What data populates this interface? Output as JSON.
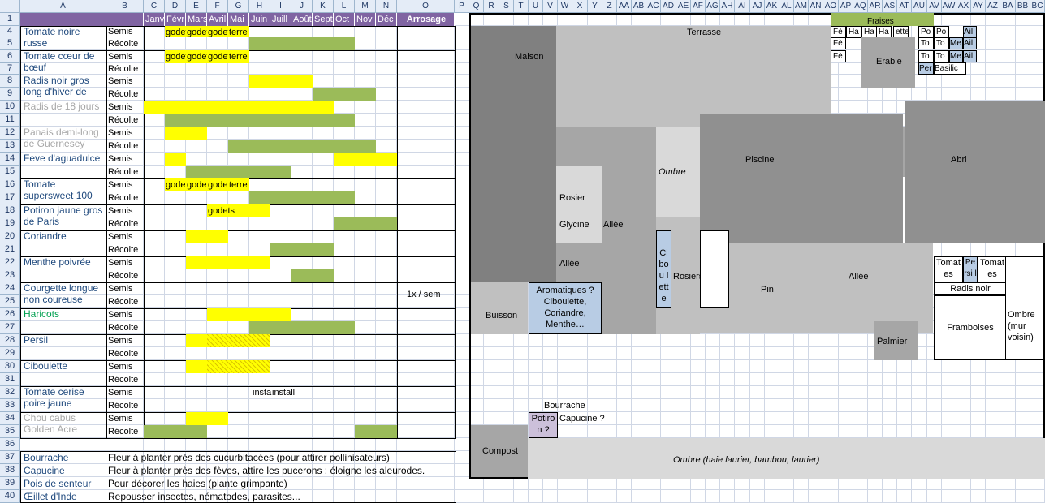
{
  "col_headers": [
    "A",
    "B",
    "C",
    "D",
    "E",
    "F",
    "G",
    "H",
    "I",
    "J",
    "K",
    "L",
    "M",
    "N",
    "O",
    "P",
    "Q",
    "R",
    "S",
    "T",
    "U",
    "V",
    "W",
    "X",
    "Y",
    "Z",
    "AA",
    "AB",
    "AC",
    "AD",
    "AE",
    "AF",
    "AG",
    "AH",
    "AI",
    "AJ",
    "AK",
    "AL",
    "AM",
    "AN",
    "AO",
    "AP",
    "AQ",
    "AR",
    "AS",
    "AT",
    "AU",
    "AV",
    "AW",
    "AX",
    "AY",
    "AZ",
    "BA",
    "BB",
    "BC"
  ],
  "row_headers": [
    "1",
    "4",
    "5",
    "6",
    "7",
    "8",
    "9",
    "10",
    "11",
    "12",
    "13",
    "14",
    "15",
    "16",
    "17",
    "18",
    "19",
    "20",
    "21",
    "22",
    "23",
    "24",
    "25",
    "26",
    "27",
    "28",
    "29",
    "30",
    "31",
    "32",
    "33",
    "34",
    "35",
    "36",
    "37",
    "38",
    "39",
    "40"
  ],
  "months": [
    "Janv",
    "Févr",
    "Mars",
    "Avril",
    "Mai",
    "Juin",
    "Juill",
    "Août",
    "Sept",
    "Oct",
    "Nov",
    "Déc"
  ],
  "arrosage_header": "Arrosage",
  "semis": "Semis",
  "recolte": "Récolte",
  "plants": [
    "Tomate noire russe",
    "Tomate cœur de bœuf",
    "Radis noir gros long d'hiver de",
    "Radis de 18 jours",
    "Panais demi-long de Guernesey",
    "Feve d'aguadulce",
    "Tomate supersweet 100",
    "Potiron jaune gros de Paris",
    "Coriandre",
    "Menthe poivrée",
    "Courgette longue non coureuse",
    "Haricots",
    "Persil",
    "Ciboulette",
    "Tomate cerise poire jaune",
    "Chou cabus Golden Acre"
  ],
  "cell_text": {
    "godet": "godet",
    "terre": "terre",
    "godets": "godets",
    "install": "install",
    "watering_courgette": "1x / sem"
  },
  "notes": [
    {
      "name": "Bourrache",
      "text": "Fleur à planter près des cucurbitacées (pour attirer pollinisateurs)"
    },
    {
      "name": "Capucine",
      "text": "Fleur à planter près des fèves, attire les pucerons ; éloigne les aleurodes."
    },
    {
      "name": "Pois de senteur",
      "text": "Pour décorer les haies (plante grimpante)"
    },
    {
      "name": "Œillet d'Inde",
      "text": "Repousser insectes, nématodes, parasites..."
    }
  ],
  "plan": {
    "maison": "Maison",
    "terrasse": "Terrasse",
    "fraises": "Fraises",
    "fe": "Fè",
    "ha": "Ha",
    "ette": "ette",
    "po": "Po",
    "to": "To",
    "me": "Me",
    "ail": "Ail",
    "per": "Per",
    "basilic": "Basilic",
    "erable": "Erable",
    "piscine": "Piscine",
    "abri": "Abri",
    "ombre": "Ombre",
    "rosier": "Rosier",
    "glycine": "Glycine",
    "allee": "Allée",
    "ciboulette_vertical": "Ci bou lett e",
    "rosiers": "Rosiers",
    "pin": "Pin",
    "tomates": "Tomat es",
    "persil": "Pe rsi l",
    "radis_noir": "Radis noir",
    "framboises": "Framboises",
    "ombre_mur": "Ombre (mur voisin)",
    "palmier": "Palmier",
    "buisson": "Buisson",
    "aromatiques": "Aromatiques ? Ciboulette, Coriandre, Menthe…",
    "bourrache": "Bourrache",
    "potiron": "Potiro n ?",
    "capucine": "Capucine ?",
    "compost": "Compost",
    "ombre_haie": "Ombre (haie laurier, bambou, laurier)"
  }
}
